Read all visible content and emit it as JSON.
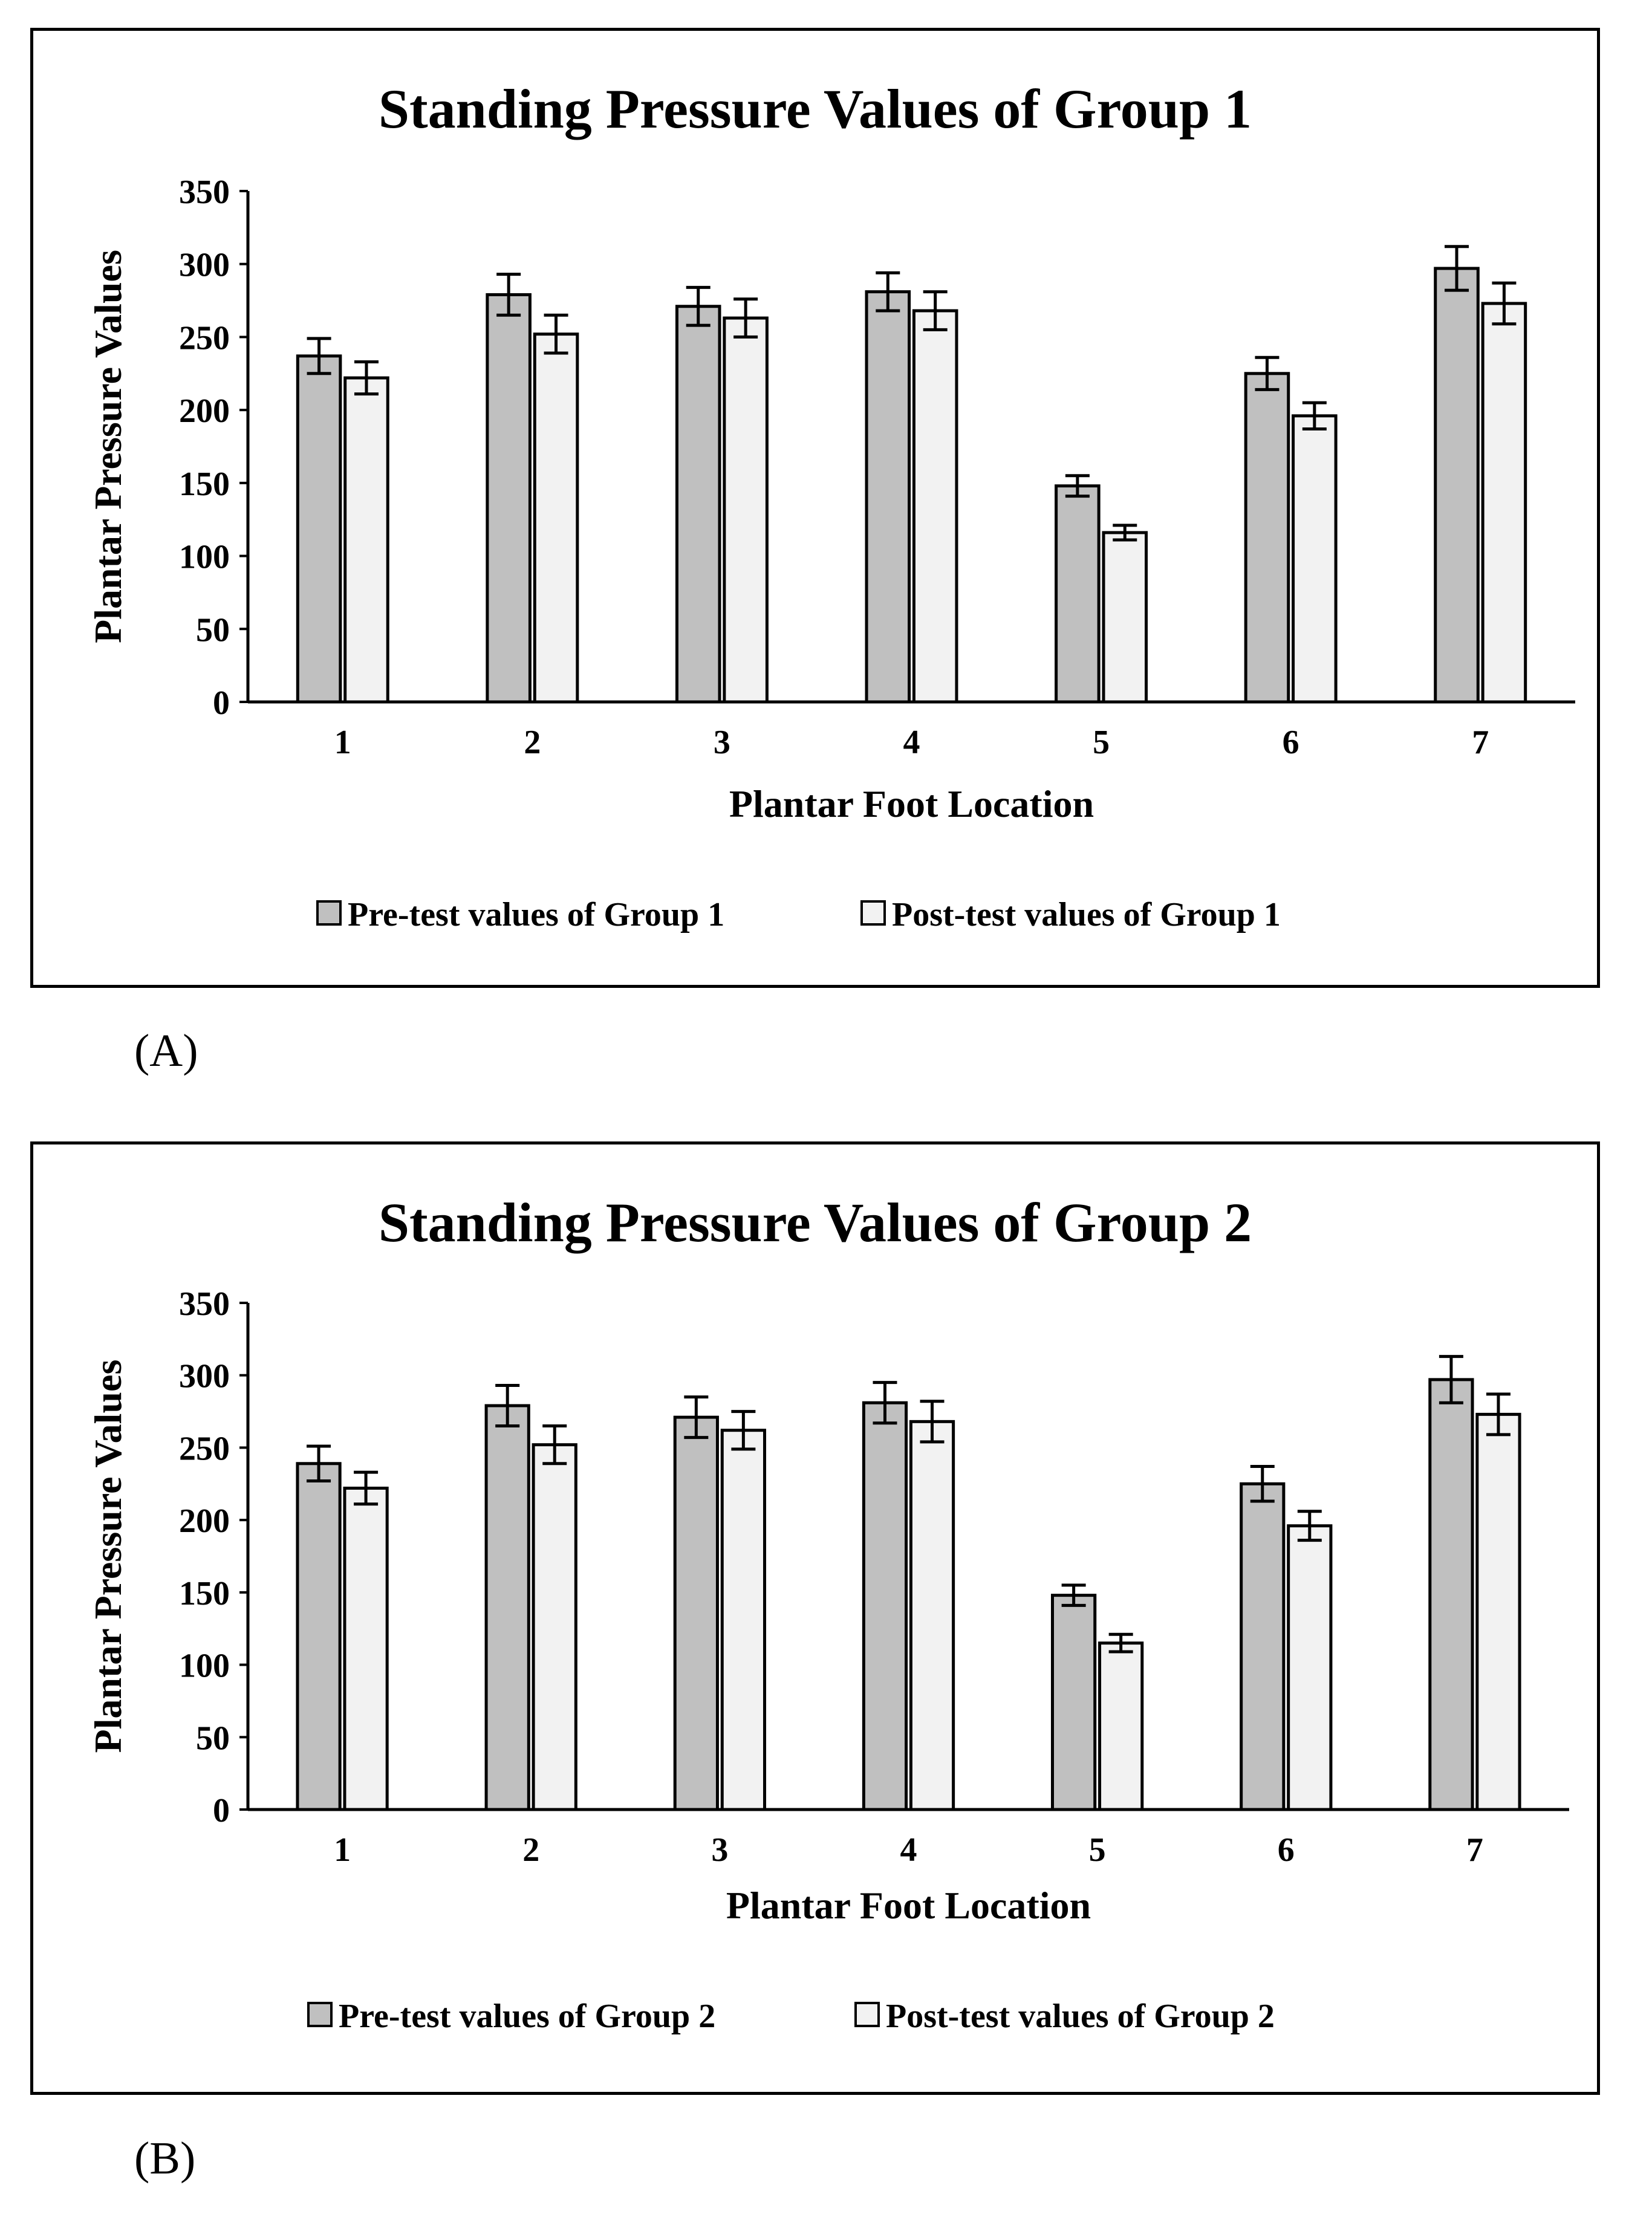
{
  "chart_data": [
    {
      "type": "bar",
      "title": "Standing Pressure Values of Group 1",
      "xlabel": "Plantar Foot Location",
      "ylabel": "Plantar Pressure Values",
      "ylim": [
        0,
        350
      ],
      "yticks": [
        "0",
        "50",
        "100",
        "150",
        "200",
        "250",
        "300",
        "350"
      ],
      "categories": [
        "1",
        "2",
        "3",
        "4",
        "5",
        "6",
        "7"
      ],
      "series": [
        {
          "name": "Pre-test values of Group 1",
          "color": "#c0c0c0",
          "values": [
            237,
            279,
            271,
            281,
            148,
            225,
            297
          ],
          "errors": [
            12,
            14,
            13,
            13,
            7,
            11,
            15
          ]
        },
        {
          "name": "Post-test values of Group 1",
          "color": "#f2f2f2",
          "values": [
            222,
            252,
            263,
            268,
            116,
            196,
            273
          ],
          "errors": [
            11,
            13,
            13,
            13,
            5,
            9,
            14
          ]
        }
      ],
      "legend_position": "bottom"
    },
    {
      "type": "bar",
      "title": "Standing Pressure Values of Group 2",
      "xlabel": "Plantar Foot Location",
      "ylabel": "Plantar Pressure Values",
      "ylim": [
        0,
        350
      ],
      "yticks": [
        "0",
        "50",
        "100",
        "150",
        "200",
        "250",
        "300",
        "350"
      ],
      "categories": [
        "1",
        "2",
        "3",
        "4",
        "5",
        "6",
        "7"
      ],
      "series": [
        {
          "name": "Pre-test values of Group 2",
          "color": "#c0c0c0",
          "values": [
            239,
            279,
            271,
            281,
            148,
            225,
            297
          ],
          "errors": [
            12,
            14,
            14,
            14,
            7,
            12,
            16
          ]
        },
        {
          "name": "Post-test values of Group 2",
          "color": "#f2f2f2",
          "values": [
            222,
            252,
            262,
            268,
            115,
            196,
            273
          ],
          "errors": [
            11,
            13,
            13,
            14,
            6,
            10,
            14
          ]
        }
      ],
      "legend_position": "bottom"
    }
  ],
  "panels": {
    "a_label": "(A)",
    "b_label": "(B)"
  }
}
